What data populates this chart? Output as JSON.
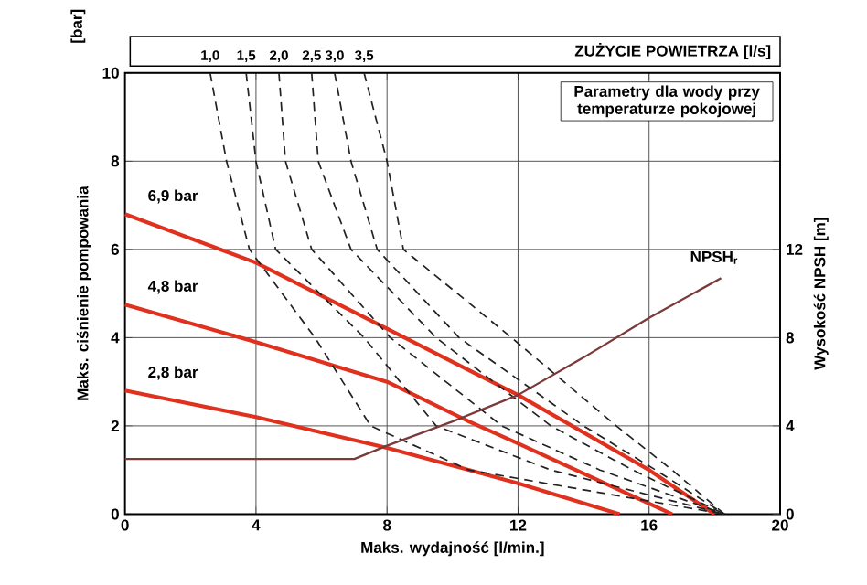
{
  "chart_data": {
    "type": "line",
    "xlabel": "Maks. wydajność [l/min.]",
    "ylabel": "Maks. ciśnienie pompowania",
    "y2label": "Wysokość NPSH [m]",
    "annotations": [
      "[bar]",
      "ZUŻYCIE POWIETRZA [l/s]",
      "Parametry dla wody przy temperaturze pokojowej"
    ],
    "xlim": [
      0,
      20
    ],
    "xticks": [
      0,
      4,
      8,
      12,
      16,
      20
    ],
    "ylim": [
      0,
      10
    ],
    "yticks": [
      0,
      2,
      4,
      6,
      8,
      10
    ],
    "y2lim": [
      0,
      20
    ],
    "y2ticks": [
      0,
      4,
      8,
      12
    ],
    "grid": true,
    "series": [
      {
        "name": "6,9 bar",
        "color": "#e0301e",
        "line_style": "solid",
        "x": [
          0,
          4,
          8,
          12,
          16,
          18
        ],
        "values": [
          6.8,
          5.7,
          4.2,
          2.7,
          1.0,
          0
        ]
      },
      {
        "name": "4,8 bar",
        "color": "#e0301e",
        "line_style": "solid",
        "x": [
          0,
          4,
          8,
          10.5,
          12,
          16.7
        ],
        "values": [
          4.75,
          3.9,
          3.0,
          2.1,
          1.6,
          0
        ]
      },
      {
        "name": "2,8 bar",
        "color": "#e0301e",
        "line_style": "solid",
        "x": [
          0,
          4,
          8,
          12,
          15.1
        ],
        "values": [
          2.8,
          2.2,
          1.5,
          0.7,
          0
        ]
      },
      {
        "name": "1,0",
        "color": "#222222",
        "line_style": "dashed",
        "x": [
          2.6,
          3.1,
          3.8,
          5.8,
          7.5,
          10.5,
          18.3
        ],
        "values": [
          10,
          8,
          6,
          4,
          2,
          1,
          0
        ]
      },
      {
        "name": "1,5",
        "color": "#222222",
        "line_style": "dashed",
        "x": [
          3.7,
          4.0,
          4.6,
          7.3,
          9.5,
          13,
          18.3
        ],
        "values": [
          10,
          8,
          6,
          4,
          2,
          1,
          0
        ]
      },
      {
        "name": "2,0",
        "color": "#222222",
        "line_style": "dashed",
        "x": [
          4.7,
          4.9,
          5.7,
          8.1,
          11.5,
          14.5,
          18.3
        ],
        "values": [
          10,
          8,
          6,
          4,
          2,
          1,
          0
        ]
      },
      {
        "name": "2,5",
        "color": "#222222",
        "line_style": "dashed",
        "x": [
          5.7,
          5.9,
          6.9,
          9.5,
          13,
          15.5,
          18.3
        ],
        "values": [
          10,
          8,
          6,
          4,
          2,
          1,
          0
        ]
      },
      {
        "name": "3,0",
        "color": "#222222",
        "line_style": "dashed",
        "x": [
          6.4,
          6.9,
          7.7,
          10.2,
          14,
          16.2,
          18.3
        ],
        "values": [
          10,
          8,
          6,
          4,
          2,
          1,
          0
        ]
      },
      {
        "name": "3,5",
        "color": "#222222",
        "line_style": "dashed",
        "x": [
          7.3,
          8.0,
          8.5,
          11.8,
          15,
          16.7,
          18.3
        ],
        "values": [
          10,
          8,
          6,
          4,
          2,
          1,
          0
        ]
      },
      {
        "name": "NPSH$_{r}$",
        "color": "#7a3a3a",
        "line_style": "solid",
        "axis": "y2",
        "x": [
          0,
          7,
          8,
          10,
          12,
          14,
          16,
          18.2
        ],
        "values": [
          2.5,
          2.5,
          3.1,
          4.2,
          5.4,
          7.1,
          8.9,
          10.7
        ]
      }
    ]
  }
}
